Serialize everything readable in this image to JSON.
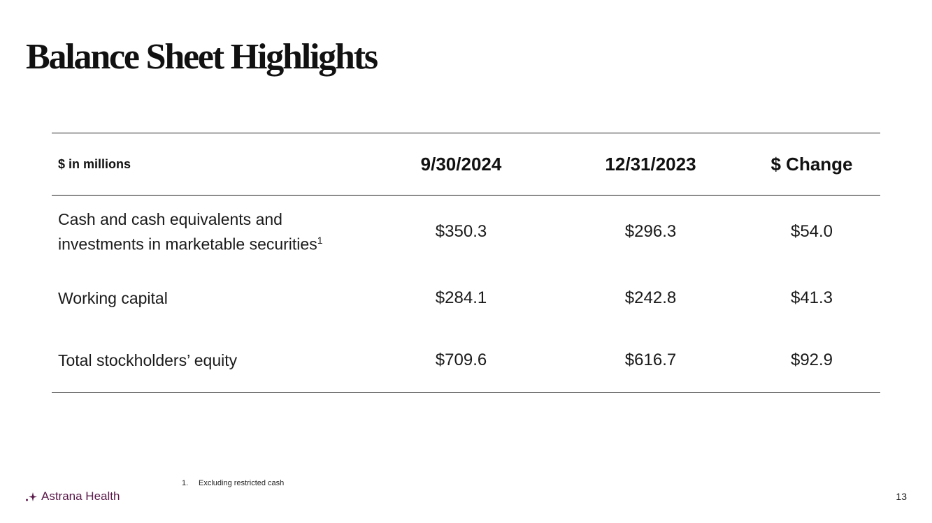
{
  "slide": {
    "title": "Balance Sheet Highlights",
    "page_number": "13"
  },
  "table": {
    "unit_label": "$ in millions",
    "columns": [
      "9/30/2024",
      "12/31/2023",
      "$ Change"
    ],
    "rows": [
      {
        "label": "Cash and cash equivalents and investments in marketable securities",
        "footnote_ref": "1",
        "values": [
          "$350.3",
          "$296.3",
          "$54.0"
        ]
      },
      {
        "label": "Working capital",
        "values": [
          "$284.1",
          "$242.8",
          "$41.3"
        ]
      },
      {
        "label": "Total stockholders’ equity",
        "values": [
          "$709.6",
          "$616.7",
          "$92.9"
        ]
      }
    ]
  },
  "footnote": {
    "number": "1.",
    "text": "Excluding restricted cash"
  },
  "brand": {
    "name": "Astrana Health",
    "color": "#5a1a4a",
    "icon": "sparkle-logo-icon"
  }
}
